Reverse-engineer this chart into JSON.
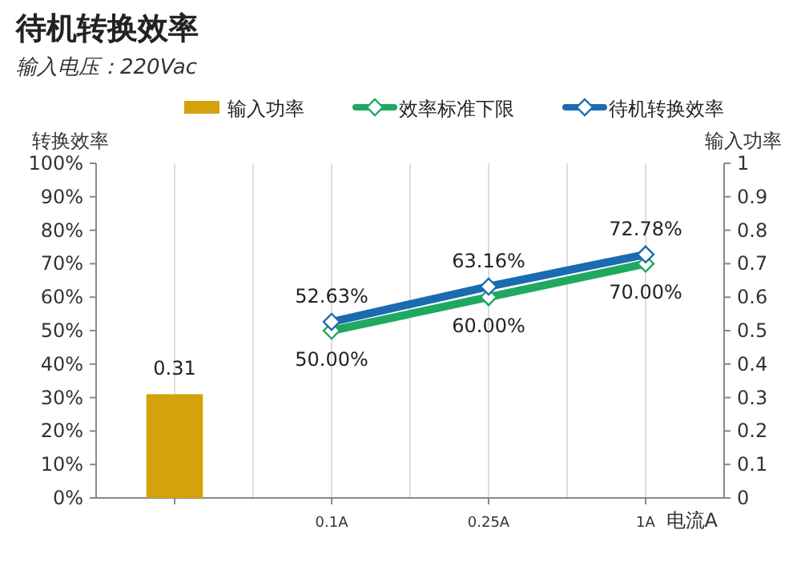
{
  "chart_data": {
    "type": "bar",
    "title": "待机转换效率",
    "subtitle": "输入电压：220Vac",
    "xlabel": "电流A",
    "ylabel": "转换效率",
    "y2label": "输入功率",
    "categories": [
      null,
      "0.1A",
      "0.25A",
      "1A"
    ],
    "series": [
      {
        "name": "输入功率",
        "axis": "y2",
        "color": "#d4a20a",
        "values": [
          0.31,
          null,
          null,
          null
        ]
      },
      {
        "name": "效率标准下限",
        "type": "line",
        "color": "#1fa860",
        "marker": "diamond",
        "values": [
          null,
          50,
          60,
          70
        ],
        "value_labels": [
          null,
          "50.00%",
          "60.00%",
          "70.00%"
        ]
      },
      {
        "name": "待机转换效率",
        "type": "line",
        "color": "#1a6bb0",
        "marker": "diamond",
        "values": [
          null,
          52.63,
          63.16,
          72.78
        ],
        "value_labels": [
          null,
          "52.63%",
          "63.16%",
          "72.78%"
        ]
      }
    ],
    "ylim": [
      0,
      100
    ],
    "yticks": [
      {
        "value": 0,
        "label": "0%"
      },
      {
        "value": 10,
        "label": "10%"
      },
      {
        "value": 20,
        "label": "20%"
      },
      {
        "value": 30,
        "label": "30%"
      },
      {
        "value": 40,
        "label": "40%"
      },
      {
        "value": 50,
        "label": "50%"
      },
      {
        "value": 60,
        "label": "60%"
      },
      {
        "value": 70,
        "label": "70%"
      },
      {
        "value": 80,
        "label": "80%"
      },
      {
        "value": 90,
        "label": "90%"
      },
      {
        "value": 100,
        "label": "100%"
      }
    ],
    "y2lim": [
      0,
      1
    ],
    "y2ticks": [
      0,
      0.1,
      0.2,
      0.3,
      0.4,
      0.5,
      0.6,
      0.7,
      0.8,
      0.9,
      1
    ],
    "grid": "x",
    "legend": "top",
    "data_labels": true
  }
}
